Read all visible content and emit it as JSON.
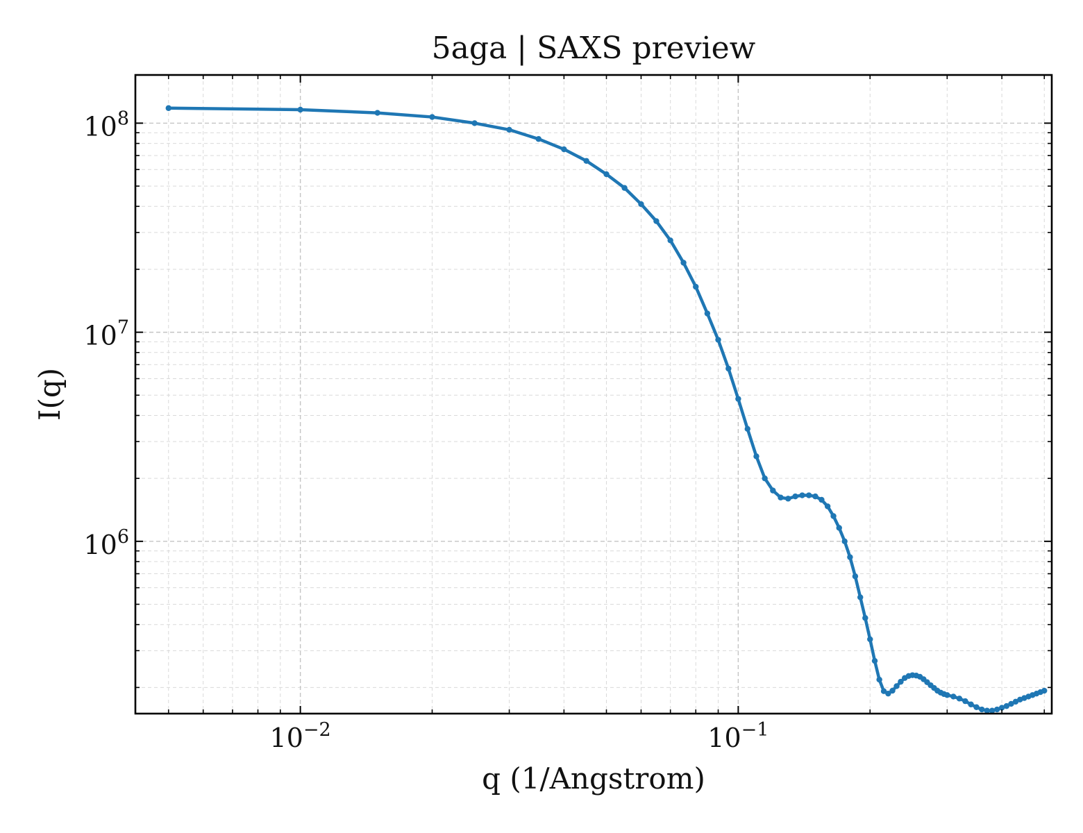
{
  "chart_data": {
    "type": "line",
    "title": "5aga | SAXS preview",
    "xlabel": "q (1/Angstrom)",
    "ylabel": "I(q)",
    "xscale": "log",
    "yscale": "log",
    "xlim": [
      0.0042,
      0.52
    ],
    "ylim": [
      150000,
      170000000
    ],
    "grid": true,
    "legend": "none",
    "x_ticks": [
      {
        "value": 0.01,
        "base": "10",
        "exp": "−2"
      },
      {
        "value": 0.1,
        "base": "10",
        "exp": "−1"
      }
    ],
    "y_ticks": [
      {
        "value": 1000000,
        "base": "10",
        "exp": "6"
      },
      {
        "value": 10000000,
        "base": "10",
        "exp": "7"
      },
      {
        "value": 100000000,
        "base": "10",
        "exp": "8"
      }
    ],
    "series": [
      {
        "color": "#1f77b4",
        "x": [
          0.005,
          0.01,
          0.015,
          0.02,
          0.025,
          0.03,
          0.035,
          0.04,
          0.045,
          0.05,
          0.055,
          0.06,
          0.065,
          0.07,
          0.075,
          0.08,
          0.085,
          0.09,
          0.095,
          0.1,
          0.105,
          0.11,
          0.115,
          0.12,
          0.125,
          0.13,
          0.135,
          0.14,
          0.145,
          0.15,
          0.155,
          0.16,
          0.165,
          0.17,
          0.175,
          0.18,
          0.185,
          0.19,
          0.195,
          0.2,
          0.205,
          0.21,
          0.215,
          0.22,
          0.225,
          0.23,
          0.235,
          0.24,
          0.245,
          0.25,
          0.255,
          0.26,
          0.265,
          0.27,
          0.275,
          0.28,
          0.285,
          0.29,
          0.295,
          0.3,
          0.31,
          0.32,
          0.33,
          0.34,
          0.35,
          0.36,
          0.37,
          0.38,
          0.39,
          0.4,
          0.41,
          0.42,
          0.43,
          0.44,
          0.45,
          0.46,
          0.47,
          0.48,
          0.49,
          0.5
        ],
        "y": [
          118000000,
          116000000,
          112000000,
          107000000,
          100000000,
          93000000,
          84000000,
          75000000,
          66000000,
          57000000,
          49000000,
          41000000,
          34000000,
          27500000,
          21500000,
          16500000,
          12300000,
          9200000,
          6700000,
          4800000,
          3450000,
          2550000,
          2000000,
          1750000,
          1620000,
          1600000,
          1640000,
          1660000,
          1660000,
          1640000,
          1580000,
          1470000,
          1320000,
          1160000,
          1000000,
          840000,
          680000,
          540000,
          430000,
          340000,
          268000,
          218000,
          192000,
          187000,
          193000,
          203000,
          213000,
          222000,
          227000,
          229000,
          228000,
          225000,
          219000,
          212000,
          205000,
          199000,
          193000,
          189000,
          186000,
          184000,
          181000,
          177000,
          172000,
          166000,
          161000,
          157000,
          155000,
          155000,
          157000,
          160000,
          163000,
          167000,
          171000,
          175000,
          178000,
          181000,
          184000,
          187000,
          190000,
          193000
        ]
      }
    ]
  }
}
